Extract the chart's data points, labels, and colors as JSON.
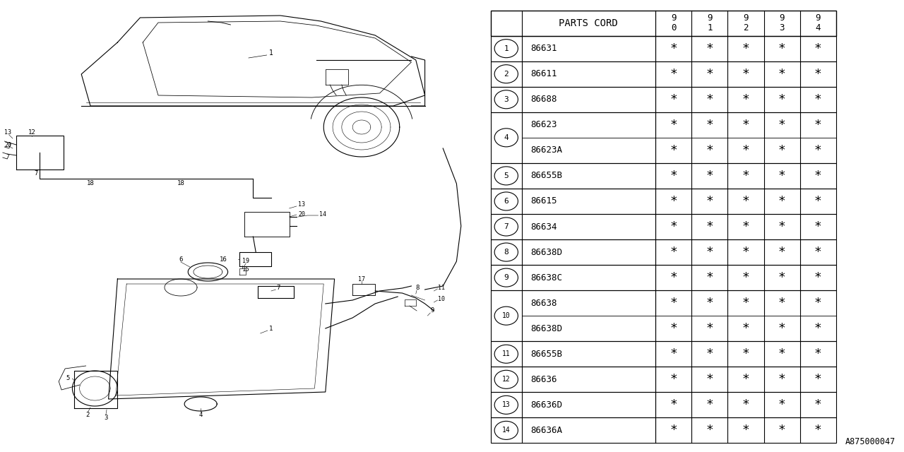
{
  "diagram_id": "A875000047",
  "bg_color": "#ffffff",
  "table": {
    "header_label": "PARTS CORD",
    "year_cols": [
      "9\n0",
      "9\n1",
      "9\n2",
      "9\n3",
      "9\n4"
    ],
    "rows": [
      {
        "num": "1",
        "parts": [
          "86631"
        ]
      },
      {
        "num": "2",
        "parts": [
          "86611"
        ]
      },
      {
        "num": "3",
        "parts": [
          "86688"
        ]
      },
      {
        "num": "4",
        "parts": [
          "86623",
          "86623A"
        ]
      },
      {
        "num": "5",
        "parts": [
          "86655B"
        ]
      },
      {
        "num": "6",
        "parts": [
          "86615"
        ]
      },
      {
        "num": "7",
        "parts": [
          "86634"
        ]
      },
      {
        "num": "8",
        "parts": [
          "86638D"
        ]
      },
      {
        "num": "9",
        "parts": [
          "86638C"
        ]
      },
      {
        "num": "10",
        "parts": [
          "86638",
          "86638D"
        ]
      },
      {
        "num": "11",
        "parts": [
          "86655B"
        ]
      },
      {
        "num": "12",
        "parts": [
          "86636"
        ]
      },
      {
        "num": "13",
        "parts": [
          "86636D"
        ]
      },
      {
        "num": "14",
        "parts": [
          "86636A"
        ]
      }
    ]
  }
}
